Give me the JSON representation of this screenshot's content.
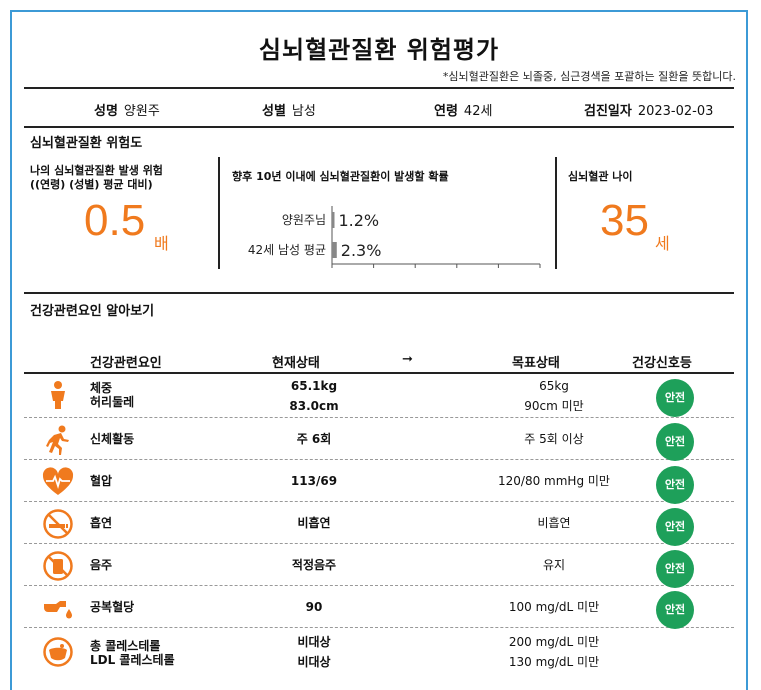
{
  "title": "심뇌혈관질환 위험평가",
  "note": "*심뇌혈관질환은 뇌졸중, 심근경색을 포괄하는 질환을 뜻합니다.",
  "info": {
    "name_label": "성명",
    "name": "양원주",
    "sex_label": "성별",
    "sex": "남성",
    "age_label": "연령",
    "age": "42세",
    "date_label": "검진일자",
    "date": "2023-02-03"
  },
  "risk": {
    "section_title": "심뇌혈관질환 위험도",
    "relative_label_1": "나의 심뇌혈관질환 발생 위험",
    "relative_label_2": "((연령) (성별) 평균 대비)",
    "relative_value": "0.5",
    "relative_unit": "배",
    "prob_label": "향후 10년 이내에 심뇌혈관질환이 발생할 확률",
    "heart_age_label": "심뇌혈관 나이",
    "heart_age_value": "35",
    "heart_age_unit": "세"
  },
  "chart_data": {
    "type": "bar",
    "orientation": "horizontal",
    "categories": [
      "양원주님",
      "42세 남성 평균"
    ],
    "values": [
      1.2,
      2.3
    ],
    "value_labels": [
      "1.2%",
      "2.3%"
    ],
    "xlim": [
      0,
      100
    ],
    "xticks": [
      "0",
      "20",
      "40",
      "60",
      "80",
      "100"
    ],
    "bar_color": "#888888"
  },
  "factors": {
    "section_title": "건강관련요인 알아보기",
    "headers": {
      "factor": "건강관련요인",
      "current": "현재상태",
      "arrow": "➞",
      "target": "목표상태",
      "signal": "건강신호등"
    },
    "rows": [
      {
        "icon": "body-icon",
        "name_1": "체중",
        "name_2": "허리둘레",
        "cur_1": "65.1kg",
        "cur_2": "83.0cm",
        "tgt_1": "65kg",
        "tgt_2": "90cm 미만",
        "signal": "안전"
      },
      {
        "icon": "running-icon",
        "name_1": "신체활동",
        "name_2": "",
        "cur_1": "주 6회",
        "cur_2": "",
        "tgt_1": "주 5회 이상",
        "tgt_2": "",
        "signal": "안전"
      },
      {
        "icon": "heart-icon",
        "name_1": "혈압",
        "name_2": "",
        "cur_1": "113/69",
        "cur_2": "",
        "tgt_1": "120/80 mmHg 미만",
        "tgt_2": "",
        "signal": "안전"
      },
      {
        "icon": "no-smoking-icon",
        "name_1": "흡연",
        "name_2": "",
        "cur_1": "비흡연",
        "cur_2": "",
        "tgt_1": "비흡연",
        "tgt_2": "",
        "signal": "안전"
      },
      {
        "icon": "no-drinking-icon",
        "name_1": "음주",
        "name_2": "",
        "cur_1": "적정음주",
        "cur_2": "",
        "tgt_1": "유지",
        "tgt_2": "",
        "signal": "안전"
      },
      {
        "icon": "blood-drop-icon",
        "name_1": "공복혈당",
        "name_2": "",
        "cur_1": "90",
        "cur_2": "",
        "tgt_1": "100 mg/dL 미만",
        "tgt_2": "",
        "signal": "안전"
      },
      {
        "icon": "cholesterol-icon",
        "name_1": "총 콜레스테롤",
        "name_2": "LDL 콜레스테롤",
        "cur_1": "비대상",
        "cur_2": "비대상",
        "tgt_1": "200 mg/dL 미만",
        "tgt_2": "130 mg/dL 미만",
        "signal": ""
      }
    ]
  },
  "colors": {
    "accent": "#f07a1e",
    "safe": "#1ea05a",
    "border": "#3c9ad6"
  }
}
